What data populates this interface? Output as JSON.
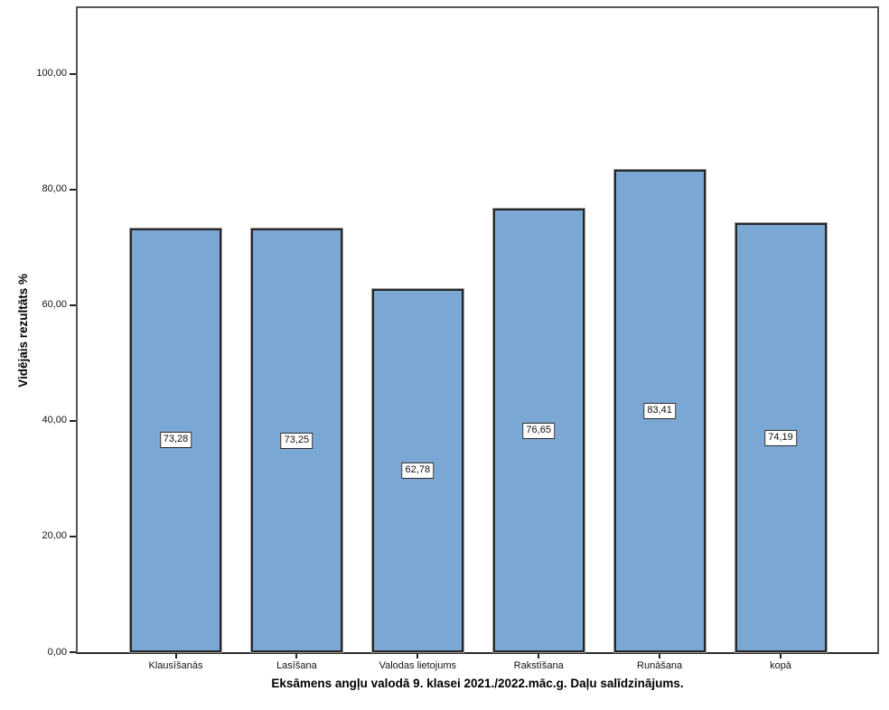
{
  "chart_data": {
    "type": "bar",
    "title": "",
    "categories": [
      "Klausīšanās",
      "Lasīšana",
      "Valodas lietojums",
      "Rakstīšana",
      "Runāšana",
      "kopā"
    ],
    "values": [
      73.28,
      73.25,
      62.78,
      76.65,
      83.41,
      74.19
    ],
    "value_labels": [
      "73,28",
      "73,25",
      "62,78",
      "76,65",
      "83,41",
      "74,19"
    ],
    "xlabel": "Eksāmens angļu valodā 9. klasei 2021./2022.māc.g. Daļu salīdzinājums.",
    "ylabel": "Vidējais rezultāts %",
    "ylim": [
      0,
      111.4
    ],
    "yticks": [
      0,
      20,
      40,
      60,
      80,
      100
    ],
    "ytick_labels": [
      "0,00",
      "20,00",
      "40,00",
      "60,00",
      "80,00",
      "100,00"
    ],
    "grid": false,
    "legend": "none",
    "bar_color": "#7AA7D4",
    "bar_border_color": "#262626",
    "plot_border_color": "#555555",
    "value_box_bg": "#FFFFFF"
  }
}
